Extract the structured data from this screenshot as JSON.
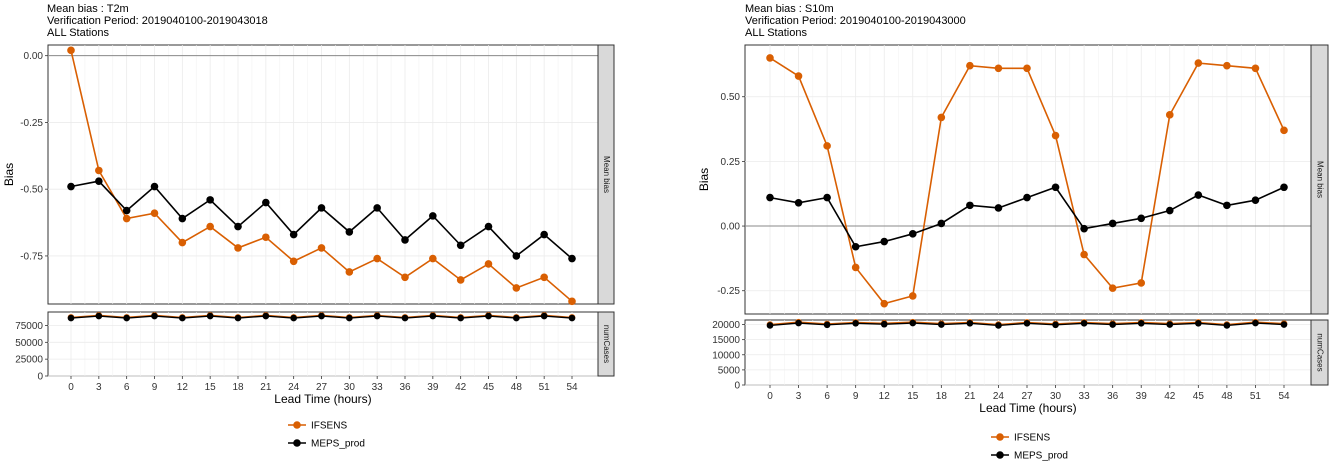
{
  "chart_data": [
    {
      "type": "line",
      "title_lines": [
        "Mean bias : T2m",
        "Verification Period: 2019040100-2019043018",
        "ALL Stations"
      ],
      "xlabel": "Lead Time (hours)",
      "ylabel": "Bias",
      "x": [
        0,
        3,
        6,
        9,
        12,
        15,
        18,
        21,
        24,
        27,
        30,
        33,
        36,
        39,
        42,
        45,
        48,
        51,
        54
      ],
      "top_facet": {
        "strip_label": "Mean bias",
        "ylim": [
          -0.93,
          0.04
        ],
        "yticks": [
          0.0,
          -0.25,
          -0.5,
          -0.75
        ],
        "ytick_labels": [
          "0.00",
          "-0.25",
          "-0.50",
          "-0.75"
        ],
        "zero_line": true,
        "series": [
          {
            "name": "IFSENS",
            "color": "#d95f02",
            "values": [
              0.02,
              -0.43,
              -0.61,
              -0.59,
              -0.7,
              -0.64,
              -0.72,
              -0.68,
              -0.77,
              -0.72,
              -0.81,
              -0.76,
              -0.83,
              -0.76,
              -0.84,
              -0.78,
              -0.87,
              -0.83,
              -0.92
            ]
          },
          {
            "name": "MEPS_prod",
            "color": "#000000",
            "values": [
              -0.49,
              -0.47,
              -0.58,
              -0.49,
              -0.61,
              -0.54,
              -0.64,
              -0.55,
              -0.67,
              -0.57,
              -0.66,
              -0.57,
              -0.69,
              -0.6,
              -0.71,
              -0.64,
              -0.75,
              -0.67,
              -0.76
            ]
          }
        ]
      },
      "bottom_facet": {
        "strip_label": "numCases",
        "ylim": [
          0,
          95000
        ],
        "yticks": [
          0,
          25000,
          50000,
          75000
        ],
        "ytick_labels": [
          "0",
          "25000",
          "50000",
          "75000"
        ],
        "series": [
          {
            "name": "IFSENS",
            "color": "#d95f02",
            "values": [
              87000,
              90000,
              87000,
              90000,
              87000,
              90000,
              87000,
              90000,
              87000,
              90000,
              87000,
              90000,
              87000,
              90000,
              87000,
              90000,
              87000,
              90000,
              87000
            ]
          },
          {
            "name": "MEPS_prod",
            "color": "#000000",
            "values": [
              86000,
              89000,
              86000,
              89000,
              86000,
              89000,
              86000,
              89000,
              86000,
              89000,
              86000,
              89000,
              86000,
              89000,
              86000,
              89000,
              86000,
              89000,
              86000
            ]
          }
        ]
      },
      "legend": {
        "position": "bottom",
        "entries": [
          "IFSENS",
          "MEPS_prod"
        ]
      },
      "grid": true
    },
    {
      "type": "line",
      "title_lines": [
        "Mean bias : S10m",
        "Verification Period: 2019040100-2019043000",
        "ALL Stations"
      ],
      "xlabel": "Lead Time (hours)",
      "ylabel": "Bias",
      "x": [
        0,
        3,
        6,
        9,
        12,
        15,
        18,
        21,
        24,
        27,
        30,
        33,
        36,
        39,
        42,
        45,
        48,
        51,
        54
      ],
      "top_facet": {
        "strip_label": "Mean bias",
        "ylim": [
          -0.34,
          0.7
        ],
        "yticks": [
          0.5,
          0.25,
          0.0,
          -0.25
        ],
        "ytick_labels": [
          "0.50",
          "0.25",
          "0.00",
          "-0.25"
        ],
        "zero_line": true,
        "series": [
          {
            "name": "IFSENS",
            "color": "#d95f02",
            "values": [
              0.65,
              0.58,
              0.31,
              -0.16,
              -0.3,
              -0.27,
              0.42,
              0.62,
              0.61,
              0.61,
              0.35,
              -0.11,
              -0.24,
              -0.22,
              0.43,
              0.63,
              0.62,
              0.61,
              0.37
            ]
          },
          {
            "name": "MEPS_prod",
            "color": "#000000",
            "values": [
              0.11,
              0.09,
              0.11,
              -0.08,
              -0.06,
              -0.03,
              0.01,
              0.08,
              0.07,
              0.11,
              0.15,
              -0.01,
              0.01,
              0.03,
              0.06,
              0.12,
              0.08,
              0.1,
              0.15
            ]
          }
        ]
      },
      "bottom_facet": {
        "strip_label": "numCases",
        "ylim": [
          0,
          21500
        ],
        "yticks": [
          0,
          5000,
          10000,
          15000,
          20000
        ],
        "ytick_labels": [
          "0",
          "5000",
          "10000",
          "15000",
          "20000"
        ],
        "series": [
          {
            "name": "IFSENS",
            "color": "#d95f02",
            "values": [
              20000,
              20800,
              20200,
              20700,
              20400,
              20800,
              20300,
              20700,
              20000,
              20700,
              20200,
              20700,
              20300,
              20700,
              20300,
              20700,
              20000,
              20800,
              20300
            ]
          },
          {
            "name": "MEPS_prod",
            "color": "#000000",
            "values": [
              19700,
              20500,
              19900,
              20400,
              20100,
              20500,
              20000,
              20400,
              19700,
              20400,
              19900,
              20400,
              20000,
              20400,
              20000,
              20400,
              19700,
              20500,
              20000
            ]
          }
        ]
      },
      "legend": {
        "position": "bottom",
        "entries": [
          "IFSENS",
          "MEPS_prod"
        ]
      },
      "grid": true
    }
  ]
}
